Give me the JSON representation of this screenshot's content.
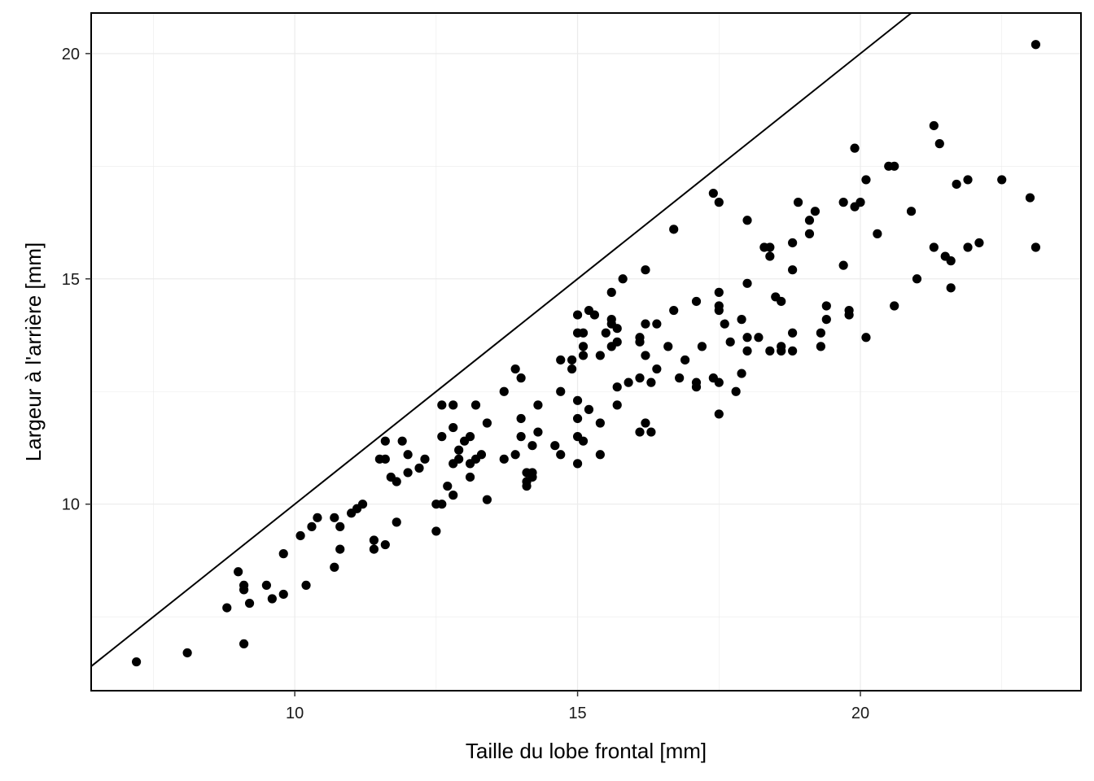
{
  "chart_data": {
    "type": "scatter",
    "title": "",
    "xlabel": "Taille du lobe frontal  [mm]",
    "ylabel": "Largeur à l'arrière  [mm]",
    "xlim": [
      6.4,
      23.9
    ],
    "ylim": [
      5.86,
      20.9
    ],
    "x_ticks": [
      10,
      15,
      20
    ],
    "x_tick_labels": [
      "10",
      "15",
      "20"
    ],
    "y_ticks": [
      10,
      15,
      20
    ],
    "y_tick_labels": [
      "10",
      "15",
      "20"
    ],
    "grid": true,
    "legend": "none",
    "reference_line": {
      "slope": 1,
      "intercept": 0,
      "label": ""
    },
    "series": [
      {
        "points": [
          [
            7.2,
            6.5
          ],
          [
            8.1,
            6.7
          ],
          [
            8.8,
            7.7
          ],
          [
            9.0,
            8.5
          ],
          [
            9.1,
            8.2
          ],
          [
            9.1,
            8.1
          ],
          [
            9.1,
            6.9
          ],
          [
            9.2,
            7.8
          ],
          [
            9.5,
            8.2
          ],
          [
            9.6,
            7.9
          ],
          [
            9.8,
            8.0
          ],
          [
            9.8,
            8.9
          ],
          [
            10.1,
            9.3
          ],
          [
            10.2,
            8.2
          ],
          [
            10.3,
            9.5
          ],
          [
            10.4,
            9.7
          ],
          [
            10.7,
            9.7
          ],
          [
            10.7,
            8.6
          ],
          [
            10.8,
            9.5
          ],
          [
            10.8,
            9.0
          ],
          [
            11.0,
            9.8
          ],
          [
            11.1,
            9.9
          ],
          [
            11.2,
            10.0
          ],
          [
            11.4,
            9.2
          ],
          [
            11.4,
            9.0
          ],
          [
            11.5,
            11.0
          ],
          [
            11.6,
            11.4
          ],
          [
            11.6,
            11.0
          ],
          [
            11.6,
            9.1
          ],
          [
            11.7,
            10.6
          ],
          [
            11.8,
            10.5
          ],
          [
            11.8,
            9.6
          ],
          [
            11.9,
            11.4
          ],
          [
            12.0,
            11.1
          ],
          [
            12.0,
            10.7
          ],
          [
            12.2,
            10.8
          ],
          [
            12.3,
            11.0
          ],
          [
            12.5,
            10.0
          ],
          [
            12.5,
            9.4
          ],
          [
            12.6,
            12.2
          ],
          [
            12.6,
            11.5
          ],
          [
            12.6,
            10.0
          ],
          [
            12.7,
            10.4
          ],
          [
            12.8,
            12.2
          ],
          [
            12.8,
            11.7
          ],
          [
            12.8,
            10.9
          ],
          [
            12.8,
            10.2
          ],
          [
            12.9,
            11.2
          ],
          [
            12.9,
            11.0
          ],
          [
            13.0,
            11.4
          ],
          [
            13.1,
            11.5
          ],
          [
            13.1,
            10.9
          ],
          [
            13.1,
            10.6
          ],
          [
            13.2,
            12.2
          ],
          [
            13.2,
            11.0
          ],
          [
            13.3,
            11.1
          ],
          [
            13.4,
            11.8
          ],
          [
            13.4,
            10.1
          ],
          [
            13.7,
            12.5
          ],
          [
            13.7,
            11.0
          ],
          [
            13.9,
            13.0
          ],
          [
            13.9,
            11.1
          ],
          [
            14.0,
            12.8
          ],
          [
            14.0,
            11.9
          ],
          [
            14.0,
            11.5
          ],
          [
            14.1,
            10.7
          ],
          [
            14.1,
            10.5
          ],
          [
            14.1,
            10.4
          ],
          [
            14.2,
            11.3
          ],
          [
            14.2,
            10.7
          ],
          [
            14.2,
            10.6
          ],
          [
            14.3,
            12.2
          ],
          [
            14.3,
            11.6
          ],
          [
            14.6,
            11.3
          ],
          [
            14.7,
            13.2
          ],
          [
            14.7,
            12.5
          ],
          [
            14.7,
            11.1
          ],
          [
            14.9,
            13.2
          ],
          [
            14.9,
            13.0
          ],
          [
            15.0,
            14.2
          ],
          [
            15.0,
            13.8
          ],
          [
            15.0,
            12.3
          ],
          [
            15.0,
            11.9
          ],
          [
            15.0,
            11.5
          ],
          [
            15.0,
            10.9
          ],
          [
            15.1,
            13.8
          ],
          [
            15.1,
            13.5
          ],
          [
            15.1,
            13.3
          ],
          [
            15.1,
            11.4
          ],
          [
            15.2,
            14.3
          ],
          [
            15.2,
            12.1
          ],
          [
            15.3,
            14.2
          ],
          [
            15.4,
            13.3
          ],
          [
            15.4,
            11.8
          ],
          [
            15.4,
            11.1
          ],
          [
            15.5,
            13.8
          ],
          [
            15.6,
            14.7
          ],
          [
            15.6,
            14.1
          ],
          [
            15.6,
            14.0
          ],
          [
            15.6,
            13.5
          ],
          [
            15.7,
            13.9
          ],
          [
            15.7,
            13.6
          ],
          [
            15.7,
            12.6
          ],
          [
            15.7,
            12.2
          ],
          [
            15.8,
            15.0
          ],
          [
            15.9,
            12.7
          ],
          [
            16.1,
            13.7
          ],
          [
            16.1,
            13.6
          ],
          [
            16.1,
            12.8
          ],
          [
            16.1,
            11.6
          ],
          [
            16.2,
            15.2
          ],
          [
            16.2,
            14.0
          ],
          [
            16.2,
            13.3
          ],
          [
            16.2,
            11.8
          ],
          [
            16.3,
            12.7
          ],
          [
            16.3,
            11.6
          ],
          [
            16.4,
            14.0
          ],
          [
            16.4,
            13.0
          ],
          [
            16.6,
            13.5
          ],
          [
            16.7,
            16.1
          ],
          [
            16.7,
            14.3
          ],
          [
            16.8,
            12.8
          ],
          [
            16.9,
            13.2
          ],
          [
            17.1,
            14.5
          ],
          [
            17.1,
            12.7
          ],
          [
            17.1,
            12.6
          ],
          [
            17.2,
            13.5
          ],
          [
            17.4,
            16.9
          ],
          [
            17.4,
            12.8
          ],
          [
            17.5,
            16.7
          ],
          [
            17.5,
            14.7
          ],
          [
            17.5,
            14.4
          ],
          [
            17.5,
            14.3
          ],
          [
            17.5,
            12.7
          ],
          [
            17.5,
            12.0
          ],
          [
            17.6,
            14.0
          ],
          [
            17.7,
            13.6
          ],
          [
            17.8,
            12.5
          ],
          [
            17.9,
            14.1
          ],
          [
            17.9,
            12.9
          ],
          [
            18.0,
            16.3
          ],
          [
            18.0,
            14.9
          ],
          [
            18.0,
            13.7
          ],
          [
            18.0,
            13.4
          ],
          [
            18.2,
            13.7
          ],
          [
            18.3,
            15.7
          ],
          [
            18.4,
            15.7
          ],
          [
            18.4,
            15.5
          ],
          [
            18.4,
            13.4
          ],
          [
            18.5,
            14.6
          ],
          [
            18.6,
            14.5
          ],
          [
            18.6,
            13.5
          ],
          [
            18.6,
            13.4
          ],
          [
            18.8,
            15.8
          ],
          [
            18.8,
            15.2
          ],
          [
            18.8,
            13.8
          ],
          [
            18.8,
            13.4
          ],
          [
            18.9,
            16.7
          ],
          [
            19.1,
            16.3
          ],
          [
            19.1,
            16.0
          ],
          [
            19.2,
            16.5
          ],
          [
            19.3,
            13.8
          ],
          [
            19.3,
            13.5
          ],
          [
            19.4,
            14.4
          ],
          [
            19.4,
            14.1
          ],
          [
            19.7,
            16.7
          ],
          [
            19.7,
            15.3
          ],
          [
            19.8,
            14.3
          ],
          [
            19.8,
            14.2
          ],
          [
            19.9,
            17.9
          ],
          [
            19.9,
            16.6
          ],
          [
            20.0,
            16.7
          ],
          [
            20.1,
            17.2
          ],
          [
            20.1,
            13.7
          ],
          [
            20.3,
            16.0
          ],
          [
            20.5,
            17.5
          ],
          [
            20.6,
            17.5
          ],
          [
            20.6,
            14.4
          ],
          [
            20.9,
            16.5
          ],
          [
            21.0,
            15.0
          ],
          [
            21.3,
            18.4
          ],
          [
            21.3,
            15.7
          ],
          [
            21.4,
            18.0
          ],
          [
            21.5,
            15.5
          ],
          [
            21.6,
            15.4
          ],
          [
            21.6,
            14.8
          ],
          [
            21.7,
            17.1
          ],
          [
            21.9,
            17.2
          ],
          [
            21.9,
            15.7
          ],
          [
            22.1,
            15.8
          ],
          [
            22.5,
            17.2
          ],
          [
            23.0,
            16.8
          ],
          [
            23.1,
            20.2
          ],
          [
            23.1,
            15.7
          ]
        ]
      }
    ]
  }
}
